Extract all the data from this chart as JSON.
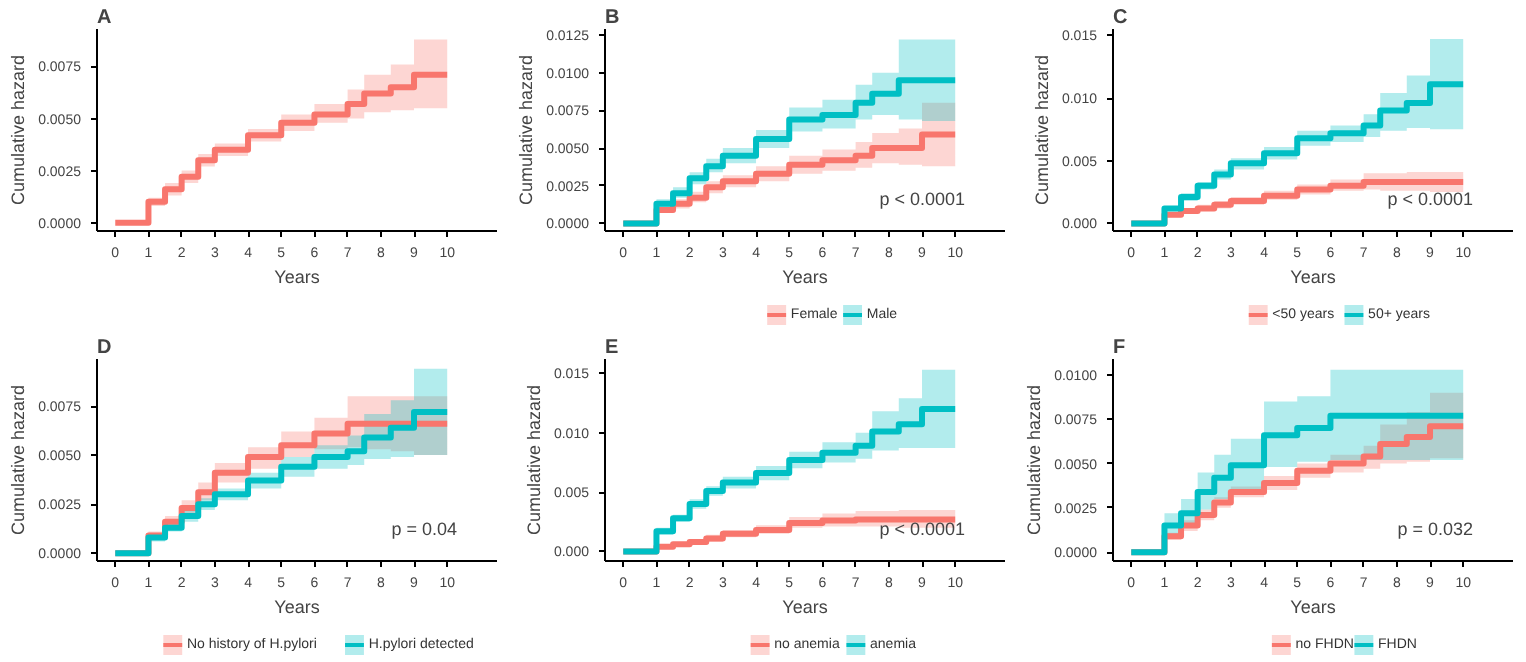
{
  "chart_data": [
    {
      "type": "step",
      "title": "A",
      "xlabel": "Years",
      "ylabel": "Cumulative hazard",
      "xlim": [
        -0.55,
        11.5
      ],
      "ylim": [
        -0.0004,
        0.0093
      ],
      "xticks": [
        0,
        1,
        2,
        3,
        4,
        5,
        6,
        7,
        8,
        9,
        10
      ],
      "yticks": [
        {
          "value": 0,
          "label": "0.0000"
        },
        {
          "value": 0.0025,
          "label": "0.0025"
        },
        {
          "value": 0.005,
          "label": "0.0050"
        },
        {
          "value": 0.0075,
          "label": "0.0075"
        }
      ],
      "grid": false,
      "x": [
        0,
        0.5,
        1,
        1.5,
        2,
        2.5,
        3,
        4,
        5,
        6,
        7,
        7.5,
        8.3,
        9,
        10
      ],
      "series": [
        {
          "color": "#f8766d",
          "values": [
            0,
            0,
            0.001,
            0.0016,
            0.0022,
            0.003,
            0.0035,
            0.0042,
            0.0048,
            0.0052,
            0.0057,
            0.0062,
            0.0065,
            0.0071,
            0.0071
          ],
          "lower": [
            0,
            0,
            0.0008,
            0.0013,
            0.0019,
            0.0027,
            0.0032,
            0.0039,
            0.0044,
            0.0048,
            0.005,
            0.0053,
            0.0054,
            0.0055,
            0.0055
          ],
          "upper": [
            0,
            0,
            0.0012,
            0.0019,
            0.0025,
            0.0033,
            0.0038,
            0.0045,
            0.0052,
            0.0057,
            0.0064,
            0.0071,
            0.0076,
            0.0088,
            0.0088
          ]
        }
      ]
    },
    {
      "type": "step",
      "title": "B",
      "xlabel": "Years",
      "ylabel": "Cumulative hazard",
      "xlim": [
        -0.55,
        11.5
      ],
      "ylim": [
        -0.0005,
        0.0129
      ],
      "xticks": [
        0,
        1,
        2,
        3,
        4,
        5,
        6,
        7,
        8,
        9,
        10
      ],
      "yticks": [
        {
          "value": 0,
          "label": "0.0000"
        },
        {
          "value": 0.0025,
          "label": "0.0025"
        },
        {
          "value": 0.005,
          "label": "0.0050"
        },
        {
          "value": 0.0075,
          "label": "0.0075"
        },
        {
          "value": 0.01,
          "label": "0.0100"
        },
        {
          "value": 0.0125,
          "label": "0.0125"
        }
      ],
      "grid": false,
      "legend": "bottom",
      "annotations": [
        "p < 0.0001"
      ],
      "x": [
        0,
        0.5,
        1,
        1.5,
        2,
        2.5,
        3,
        4,
        5,
        6,
        7,
        7.5,
        8.3,
        9,
        10
      ],
      "series": [
        {
          "name": "Female",
          "color": "#f8766d",
          "values": [
            0,
            0,
            0.0009,
            0.0013,
            0.0017,
            0.0024,
            0.0028,
            0.0033,
            0.0039,
            0.0042,
            0.0045,
            0.005,
            0.005,
            0.0059,
            0.0059
          ],
          "lower": [
            0,
            0,
            0.0007,
            0.001,
            0.0014,
            0.002,
            0.0024,
            0.0028,
            0.0033,
            0.0035,
            0.0037,
            0.004,
            0.0039,
            0.0038,
            0.0038
          ],
          "upper": [
            0,
            0,
            0.0011,
            0.0016,
            0.0021,
            0.0028,
            0.0032,
            0.0038,
            0.0045,
            0.0049,
            0.0054,
            0.006,
            0.0063,
            0.008,
            0.008
          ]
        },
        {
          "name": "Male",
          "color": "#00bfc4",
          "values": [
            0,
            0,
            0.0013,
            0.002,
            0.003,
            0.0038,
            0.0045,
            0.0056,
            0.0069,
            0.0072,
            0.008,
            0.0086,
            0.0095,
            0.0095,
            0.0095
          ],
          "lower": [
            0,
            0,
            0.001,
            0.0017,
            0.0026,
            0.0034,
            0.004,
            0.005,
            0.0061,
            0.0063,
            0.0069,
            0.0072,
            0.0069,
            0.0068,
            0.0068
          ],
          "upper": [
            0,
            0,
            0.0016,
            0.0024,
            0.0034,
            0.0043,
            0.005,
            0.0062,
            0.0077,
            0.0082,
            0.0092,
            0.01,
            0.0122,
            0.0122,
            0.0122
          ]
        }
      ]
    },
    {
      "type": "step",
      "title": "C",
      "xlabel": "Years",
      "ylabel": "Cumulative hazard",
      "xlim": [
        -0.55,
        11.5
      ],
      "ylim": [
        -0.0006,
        0.0155
      ],
      "xticks": [
        0,
        1,
        2,
        3,
        4,
        5,
        6,
        7,
        8,
        9,
        10
      ],
      "yticks": [
        {
          "value": 0,
          "label": "0.000"
        },
        {
          "value": 0.005,
          "label": "0.005"
        },
        {
          "value": 0.01,
          "label": "0.010"
        },
        {
          "value": 0.015,
          "label": "0.015"
        }
      ],
      "grid": false,
      "legend": "bottom",
      "annotations": [
        "p < 0.0001"
      ],
      "x": [
        0,
        0.5,
        1,
        1.5,
        2,
        2.5,
        3,
        4,
        5,
        6,
        7,
        7.5,
        8.3,
        9,
        10
      ],
      "series": [
        {
          "name": "<50 years",
          "color": "#f8766d",
          "values": [
            0,
            0,
            0.0007,
            0.001,
            0.0012,
            0.0015,
            0.0018,
            0.0022,
            0.0027,
            0.003,
            0.0033,
            0.0033,
            0.0033,
            0.0033,
            0.0033
          ],
          "lower": [
            0,
            0,
            0.0005,
            0.0008,
            0.001,
            0.0012,
            0.0015,
            0.0019,
            0.0023,
            0.0026,
            0.0027,
            0.0026,
            0.0026,
            0.0025,
            0.0025
          ],
          "upper": [
            0,
            0,
            0.0009,
            0.0012,
            0.0015,
            0.0018,
            0.0021,
            0.0026,
            0.0031,
            0.0035,
            0.004,
            0.004,
            0.0041,
            0.0041,
            0.0041
          ]
        },
        {
          "name": "50+ years",
          "color": "#00bfc4",
          "values": [
            0,
            0,
            0.0012,
            0.0021,
            0.003,
            0.0039,
            0.0048,
            0.0056,
            0.0068,
            0.0072,
            0.0078,
            0.009,
            0.0096,
            0.0111,
            0.0111
          ],
          "lower": [
            0,
            0,
            0.001,
            0.0018,
            0.0027,
            0.0035,
            0.0043,
            0.0051,
            0.0062,
            0.0065,
            0.0069,
            0.0074,
            0.0076,
            0.0075,
            0.0075
          ],
          "upper": [
            0,
            0,
            0.0014,
            0.0024,
            0.0033,
            0.0043,
            0.0052,
            0.0061,
            0.0074,
            0.0078,
            0.0087,
            0.0104,
            0.0118,
            0.0147,
            0.0147
          ]
        }
      ]
    },
    {
      "type": "step",
      "title": "D",
      "xlabel": "Years",
      "ylabel": "Cumulative hazard",
      "xlim": [
        -0.55,
        11.5
      ],
      "ylim": [
        -0.0004,
        0.0099
      ],
      "xticks": [
        0,
        1,
        2,
        3,
        4,
        5,
        6,
        7,
        8,
        9,
        10
      ],
      "yticks": [
        {
          "value": 0,
          "label": "0.0000"
        },
        {
          "value": 0.0025,
          "label": "0.0025"
        },
        {
          "value": 0.005,
          "label": "0.0050"
        },
        {
          "value": 0.0075,
          "label": "0.0075"
        }
      ],
      "grid": false,
      "legend": "bottom",
      "annotations": [
        "p = 0.04"
      ],
      "x": [
        0,
        0.5,
        1,
        1.5,
        2,
        2.5,
        3,
        4,
        5,
        6,
        7,
        7.5,
        8.3,
        9,
        10
      ],
      "series": [
        {
          "name": "No history of H.pylori",
          "color": "#f8766d",
          "values": [
            0,
            0,
            0.0009,
            0.0016,
            0.0023,
            0.0031,
            0.0041,
            0.0049,
            0.0055,
            0.0061,
            0.0066,
            0.0066,
            0.0066,
            0.0066,
            0.0066
          ],
          "lower": [
            0,
            0,
            0.0007,
            0.0013,
            0.0019,
            0.0027,
            0.0036,
            0.0043,
            0.0049,
            0.0053,
            0.0054,
            0.0053,
            0.0052,
            0.005,
            0.005
          ],
          "upper": [
            0,
            0,
            0.0011,
            0.0019,
            0.0027,
            0.0036,
            0.0046,
            0.0054,
            0.0062,
            0.0069,
            0.008,
            0.008,
            0.008,
            0.008,
            0.008
          ]
        },
        {
          "name": "H.pylori detected",
          "color": "#00bfc4",
          "values": [
            0,
            0,
            0.0008,
            0.0013,
            0.0019,
            0.0025,
            0.003,
            0.0037,
            0.0044,
            0.0049,
            0.0052,
            0.0059,
            0.0064,
            0.0072,
            0.0072
          ],
          "lower": [
            0,
            0,
            0.0006,
            0.0011,
            0.0016,
            0.0022,
            0.0027,
            0.0033,
            0.0039,
            0.0043,
            0.0045,
            0.0048,
            0.0049,
            0.005,
            0.005
          ],
          "upper": [
            0,
            0,
            0.001,
            0.0015,
            0.0022,
            0.0028,
            0.0033,
            0.0041,
            0.0049,
            0.0055,
            0.006,
            0.0071,
            0.0078,
            0.0094,
            0.0094
          ]
        }
      ]
    },
    {
      "type": "step",
      "title": "E",
      "xlabel": "Years",
      "ylabel": "Cumulative hazard",
      "xlim": [
        -0.55,
        11.5
      ],
      "ylim": [
        -0.0008,
        0.0162
      ],
      "xticks": [
        0,
        1,
        2,
        3,
        4,
        5,
        6,
        7,
        8,
        9,
        10
      ],
      "yticks": [
        {
          "value": 0,
          "label": "0.000"
        },
        {
          "value": 0.005,
          "label": "0.005"
        },
        {
          "value": 0.01,
          "label": "0.010"
        },
        {
          "value": 0.015,
          "label": "0.015"
        }
      ],
      "grid": false,
      "legend": "bottom",
      "annotations": [
        "p < 0.0001"
      ],
      "x": [
        0,
        0.5,
        1,
        1.5,
        2,
        2.5,
        3,
        4,
        5,
        6,
        7,
        7.5,
        8.3,
        9,
        10
      ],
      "series": [
        {
          "name": "no anemia",
          "color": "#f8766d",
          "values": [
            0,
            0,
            0.0004,
            0.0006,
            0.0008,
            0.0011,
            0.0015,
            0.0018,
            0.0024,
            0.0026,
            0.0027,
            0.0027,
            0.0027,
            0.0027,
            0.0027
          ],
          "lower": [
            0,
            0,
            0.0002,
            0.0004,
            0.0006,
            0.0008,
            0.0012,
            0.0015,
            0.002,
            0.0021,
            0.0021,
            0.0021,
            0.002,
            0.002,
            0.002
          ],
          "upper": [
            0,
            0,
            0.0006,
            0.0008,
            0.001,
            0.0014,
            0.0018,
            0.0022,
            0.0029,
            0.0032,
            0.0034,
            0.0034,
            0.0035,
            0.0035,
            0.0035
          ]
        },
        {
          "name": "anemia",
          "color": "#00bfc4",
          "values": [
            0,
            0,
            0.0017,
            0.0028,
            0.004,
            0.0051,
            0.0058,
            0.0066,
            0.0077,
            0.0083,
            0.0089,
            0.0101,
            0.0107,
            0.012,
            0.012
          ],
          "lower": [
            0,
            0,
            0.0014,
            0.0025,
            0.0036,
            0.0047,
            0.0053,
            0.006,
            0.007,
            0.0075,
            0.0078,
            0.0085,
            0.0087,
            0.0087,
            0.0087
          ],
          "upper": [
            0,
            0,
            0.002,
            0.0031,
            0.0044,
            0.0055,
            0.0063,
            0.0072,
            0.0084,
            0.0092,
            0.01,
            0.0118,
            0.0129,
            0.0153,
            0.0153
          ]
        }
      ]
    },
    {
      "type": "step",
      "title": "F",
      "xlabel": "Years",
      "ylabel": "Cumulative hazard",
      "xlim": [
        -0.55,
        11.5
      ],
      "ylim": [
        -0.0005,
        0.0109
      ],
      "xticks": [
        0,
        1,
        2,
        3,
        4,
        5,
        6,
        7,
        8,
        9,
        10
      ],
      "yticks": [
        {
          "value": 0,
          "label": "0.0000"
        },
        {
          "value": 0.0025,
          "label": "0.0025"
        },
        {
          "value": 0.005,
          "label": "0.0050"
        },
        {
          "value": 0.0075,
          "label": "0.0075"
        },
        {
          "value": 0.01,
          "label": "0.0100"
        }
      ],
      "grid": false,
      "legend": "bottom",
      "annotations": [
        "p = 0.032"
      ],
      "x": [
        0,
        0.5,
        1,
        1.5,
        2,
        2.5,
        3,
        4,
        5,
        6,
        7,
        7.5,
        8.3,
        9,
        10
      ],
      "series": [
        {
          "name": "no FHDN",
          "color": "#f8766d",
          "values": [
            0,
            0,
            0.0009,
            0.0015,
            0.0021,
            0.0028,
            0.0034,
            0.0039,
            0.0046,
            0.005,
            0.0054,
            0.0061,
            0.0065,
            0.0071,
            0.0071
          ],
          "lower": [
            0,
            0,
            0.0007,
            0.0012,
            0.0018,
            0.0025,
            0.0031,
            0.0035,
            0.0042,
            0.0045,
            0.0047,
            0.005,
            0.0051,
            0.0053,
            0.0053
          ],
          "upper": [
            0,
            0,
            0.0011,
            0.0018,
            0.0024,
            0.0031,
            0.0037,
            0.0043,
            0.005,
            0.0055,
            0.006,
            0.0072,
            0.0079,
            0.009,
            0.009
          ]
        },
        {
          "name": "FHDN",
          "color": "#00bfc4",
          "values": [
            0,
            0,
            0.0015,
            0.0022,
            0.0034,
            0.0042,
            0.0049,
            0.0066,
            0.007,
            0.0077,
            0.0077,
            0.0077,
            0.0077,
            0.0077,
            0.0077
          ],
          "lower": [
            0,
            0,
            0.001,
            0.0015,
            0.0024,
            0.003,
            0.0034,
            0.0048,
            0.0051,
            0.0052,
            0.0052,
            0.0052,
            0.0052,
            0.0052,
            0.0052
          ],
          "upper": [
            0,
            0,
            0.0022,
            0.003,
            0.0045,
            0.0055,
            0.0064,
            0.0085,
            0.0088,
            0.0103,
            0.0103,
            0.0103,
            0.0103,
            0.0103,
            0.0103
          ]
        }
      ]
    }
  ]
}
